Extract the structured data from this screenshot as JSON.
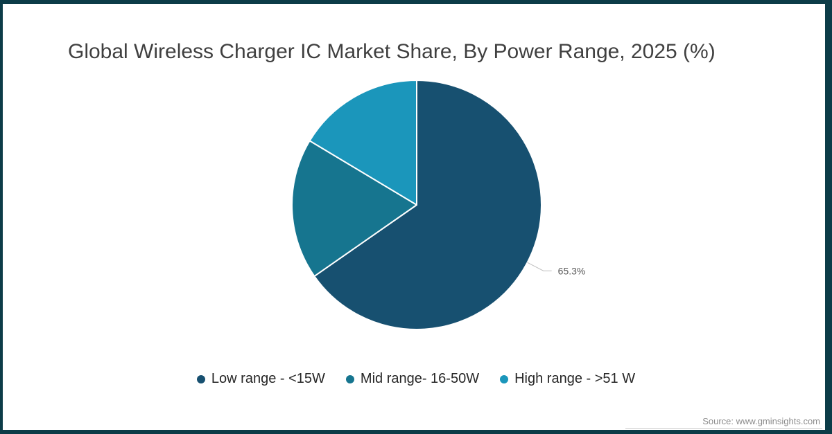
{
  "header": {
    "title": "Global Wireless Charger IC Market Share, By Power Range, 2025 (%)"
  },
  "chart_data": {
    "type": "pie",
    "title": "Global Wireless Charger IC Market Share, By Power Range, 2025 (%)",
    "categories": [
      "Low range - <15W",
      "Mid range- 16-50W",
      "High range - >51 W"
    ],
    "values": [
      65.3,
      18.3,
      16.4
    ],
    "colors": [
      "#175070",
      "#16758F",
      "#1B96BB"
    ],
    "start_angle_deg": 0,
    "direction": "clockwise",
    "data_labels": [
      {
        "slice_index": 0,
        "text": "65.3%"
      }
    ],
    "legend_position": "bottom",
    "grid": false
  },
  "legend": {
    "items": [
      {
        "label": "Low range - <15W",
        "color": "#175070"
      },
      {
        "label": "Mid range- 16-50W",
        "color": "#16758F"
      },
      {
        "label": "High range - >51 W",
        "color": "#1B96BB"
      }
    ]
  },
  "footer": {
    "source": "Source: www.gminsights.com"
  },
  "theme": {
    "frame_color": "#0C3C48",
    "background": "#FFFFFF",
    "title_color": "#404040",
    "legend_text_color": "#262626",
    "data_label_color": "#595959",
    "leader_line_color": "#BFBFBF",
    "slice_border_color": "#FFFFFF",
    "source_text_color": "#8C8C8C"
  }
}
